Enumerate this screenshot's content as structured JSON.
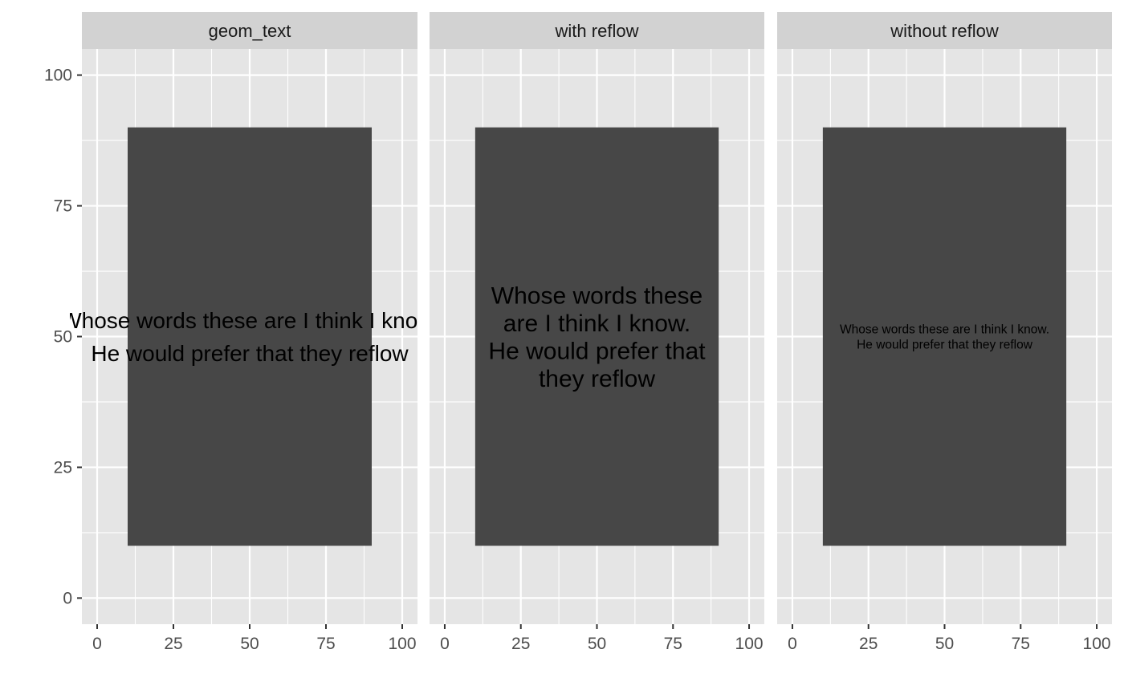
{
  "chart_data": {
    "type": "faceted-rect-text",
    "facets": [
      {
        "title": "geom_text",
        "lines": [
          "Whose words these are I think I know.",
          "He would prefer that they reflow"
        ],
        "size": "large",
        "clip": false
      },
      {
        "title": "with reflow",
        "lines": [
          "Whose words these",
          "are I think I know.",
          "He would prefer that",
          "they reflow"
        ],
        "size": "large",
        "clip": true
      },
      {
        "title": "without reflow",
        "lines": [
          "Whose words these are I think I know.",
          "He would prefer that they reflow"
        ],
        "size": "small",
        "clip": true
      }
    ],
    "rect": {
      "xmin": 10,
      "xmax": 90,
      "ymin": 10,
      "ymax": 90
    },
    "text_position": {
      "x": 50,
      "y": 50
    },
    "xlim": [
      -5,
      105
    ],
    "ylim": [
      -5,
      105
    ],
    "x_ticks": [
      0,
      25,
      50,
      75,
      100
    ],
    "y_ticks": [
      0,
      25,
      50,
      75,
      100
    ],
    "xlabel": "",
    "ylabel": "",
    "colors": {
      "panel": "#e5e5e5",
      "strip": "#d2d2d2",
      "grid": "#ffffff",
      "rect": "#474747",
      "text": "#000000",
      "tick": "#4d4d4d"
    }
  }
}
